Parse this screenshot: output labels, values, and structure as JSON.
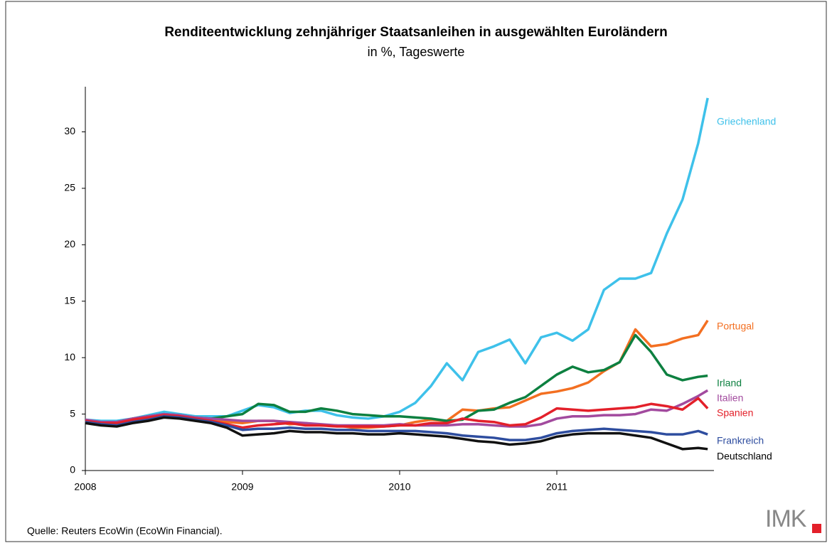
{
  "chart_data": {
    "type": "line",
    "title": "Renditeentwicklung zehnjähriger Staatsanleihen in ausgewählten Euroländern",
    "subtitle": "in %, Tageswerte",
    "source": "Quelle: Reuters EcoWin (EcoWin Financial).",
    "logo": "IMK",
    "x": [
      2008.0,
      2008.1,
      2008.2,
      2008.3,
      2008.4,
      2008.5,
      2008.6,
      2008.7,
      2008.8,
      2008.9,
      2009.0,
      2009.1,
      2009.2,
      2009.3,
      2009.4,
      2009.5,
      2009.6,
      2009.7,
      2009.8,
      2009.9,
      2010.0,
      2010.1,
      2010.2,
      2010.3,
      2010.4,
      2010.5,
      2010.6,
      2010.7,
      2010.8,
      2010.9,
      2011.0,
      2011.1,
      2011.2,
      2011.3,
      2011.4,
      2011.5,
      2011.6,
      2011.7,
      2011.8,
      2011.9,
      2011.96
    ],
    "xlim": [
      2008,
      2012
    ],
    "xticks": [
      2008,
      2009,
      2010,
      2011
    ],
    "ylim": [
      0,
      34
    ],
    "yticks": [
      0,
      5,
      10,
      15,
      20,
      25,
      30
    ],
    "series": [
      {
        "name": "Griechenland",
        "color": "#3ec1ea",
        "values": [
          4.5,
          4.4,
          4.4,
          4.6,
          4.9,
          5.2,
          5.0,
          4.8,
          4.8,
          4.8,
          5.3,
          5.8,
          5.6,
          5.1,
          5.3,
          5.3,
          4.9,
          4.7,
          4.6,
          4.8,
          5.2,
          6.0,
          7.5,
          9.5,
          8.0,
          10.5,
          11.0,
          11.6,
          9.5,
          11.8,
          12.2,
          11.5,
          12.5,
          16.0,
          17.0,
          17.0,
          17.5,
          21.0,
          24.0,
          29.0,
          33.0
        ]
      },
      {
        "name": "Portugal",
        "color": "#f36f21",
        "values": [
          4.4,
          4.2,
          4.2,
          4.5,
          4.7,
          5.0,
          4.8,
          4.6,
          4.4,
          4.3,
          4.2,
          4.4,
          4.4,
          4.1,
          4.2,
          4.0,
          4.0,
          3.8,
          3.8,
          3.9,
          4.0,
          4.3,
          4.5,
          4.4,
          5.4,
          5.3,
          5.5,
          5.6,
          6.2,
          6.8,
          7.0,
          7.3,
          7.8,
          8.8,
          9.6,
          12.5,
          11.0,
          11.2,
          11.7,
          12.0,
          13.3
        ]
      },
      {
        "name": "Irland",
        "color": "#0d8040",
        "values": [
          4.4,
          4.2,
          4.3,
          4.6,
          4.8,
          5.0,
          4.9,
          4.7,
          4.6,
          4.8,
          5.0,
          5.9,
          5.8,
          5.2,
          5.2,
          5.5,
          5.3,
          5.0,
          4.9,
          4.8,
          4.8,
          4.7,
          4.6,
          4.4,
          4.5,
          5.3,
          5.4,
          6.0,
          6.5,
          7.5,
          8.5,
          9.2,
          8.7,
          8.9,
          9.6,
          12.0,
          10.5,
          8.5,
          8.0,
          8.3,
          8.4
        ]
      },
      {
        "name": "Italien",
        "color": "#a24a9e",
        "values": [
          4.5,
          4.3,
          4.3,
          4.6,
          4.8,
          5.0,
          4.9,
          4.7,
          4.6,
          4.5,
          4.4,
          4.4,
          4.4,
          4.3,
          4.2,
          4.1,
          4.0,
          4.0,
          4.0,
          4.0,
          4.1,
          4.0,
          4.0,
          4.0,
          4.1,
          4.1,
          4.0,
          3.9,
          3.9,
          4.1,
          4.6,
          4.8,
          4.8,
          4.9,
          4.9,
          5.0,
          5.4,
          5.3,
          5.9,
          6.6,
          7.1
        ]
      },
      {
        "name": "Spanien",
        "color": "#e3202a",
        "values": [
          4.4,
          4.2,
          4.2,
          4.5,
          4.7,
          4.9,
          4.8,
          4.6,
          4.4,
          4.1,
          3.8,
          4.0,
          4.1,
          4.2,
          4.0,
          4.0,
          3.9,
          3.9,
          3.9,
          3.9,
          4.0,
          4.0,
          4.2,
          4.2,
          4.6,
          4.4,
          4.3,
          4.0,
          4.1,
          4.7,
          5.5,
          5.4,
          5.3,
          5.4,
          5.5,
          5.6,
          5.9,
          5.7,
          5.4,
          6.4,
          5.5
        ]
      },
      {
        "name": "Frankreich",
        "color": "#2e4d9f",
        "values": [
          4.3,
          4.1,
          4.0,
          4.3,
          4.5,
          4.8,
          4.7,
          4.5,
          4.3,
          4.0,
          3.6,
          3.7,
          3.7,
          3.8,
          3.7,
          3.7,
          3.6,
          3.6,
          3.5,
          3.5,
          3.5,
          3.5,
          3.4,
          3.3,
          3.1,
          3.0,
          2.9,
          2.7,
          2.7,
          2.9,
          3.3,
          3.5,
          3.6,
          3.7,
          3.6,
          3.5,
          3.4,
          3.2,
          3.2,
          3.5,
          3.2
        ]
      },
      {
        "name": "Deutschland",
        "color": "#111111",
        "values": [
          4.2,
          4.0,
          3.9,
          4.2,
          4.4,
          4.7,
          4.6,
          4.4,
          4.2,
          3.8,
          3.1,
          3.2,
          3.3,
          3.5,
          3.4,
          3.4,
          3.3,
          3.3,
          3.2,
          3.2,
          3.3,
          3.2,
          3.1,
          3.0,
          2.8,
          2.6,
          2.5,
          2.3,
          2.4,
          2.6,
          3.0,
          3.2,
          3.3,
          3.3,
          3.3,
          3.1,
          2.9,
          2.4,
          1.9,
          2.0,
          1.9
        ]
      }
    ]
  }
}
